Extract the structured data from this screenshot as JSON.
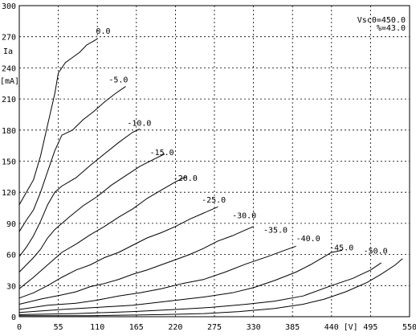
{
  "chart_data": {
    "type": "line",
    "xlim": [
      0,
      550
    ],
    "ylim": [
      0,
      300
    ],
    "x_ticks": [
      0,
      55,
      110,
      165,
      220,
      275,
      330,
      385,
      440,
      495,
      550
    ],
    "y_ticks": [
      0,
      30,
      60,
      90,
      120,
      150,
      180,
      210,
      240,
      270,
      300
    ],
    "x_unit_label": "[V]",
    "y_axis_label": "Ia",
    "y_unit_label": "[mA]",
    "annotations": [
      "Vsc0=450.0",
      "%=43.0"
    ],
    "grid": "dashed",
    "series": [
      {
        "name": "0.0",
        "points": [
          [
            0,
            108
          ],
          [
            10,
            120
          ],
          [
            20,
            132
          ],
          [
            30,
            155
          ],
          [
            40,
            185
          ],
          [
            50,
            215
          ],
          [
            55,
            235
          ],
          [
            65,
            245
          ],
          [
            75,
            250
          ],
          [
            85,
            255
          ],
          [
            95,
            262
          ],
          [
            105,
            266
          ],
          [
            110,
            268
          ]
        ]
      },
      {
        "name": "-5.0",
        "points": [
          [
            0,
            82
          ],
          [
            10,
            93
          ],
          [
            20,
            103
          ],
          [
            30,
            120
          ],
          [
            40,
            140
          ],
          [
            50,
            160
          ],
          [
            60,
            175
          ],
          [
            75,
            180
          ],
          [
            90,
            190
          ],
          [
            105,
            198
          ],
          [
            120,
            207
          ],
          [
            135,
            215
          ],
          [
            150,
            222
          ]
        ]
      },
      {
        "name": "-10.0",
        "points": [
          [
            0,
            58
          ],
          [
            10,
            67
          ],
          [
            20,
            78
          ],
          [
            30,
            92
          ],
          [
            40,
            108
          ],
          [
            50,
            120
          ],
          [
            60,
            126
          ],
          [
            80,
            134
          ],
          [
            100,
            146
          ],
          [
            120,
            157
          ],
          [
            140,
            168
          ],
          [
            160,
            178
          ],
          [
            170,
            181
          ]
        ]
      },
      {
        "name": "-15.0",
        "points": [
          [
            0,
            43
          ],
          [
            10,
            50
          ],
          [
            20,
            57
          ],
          [
            30,
            65
          ],
          [
            40,
            76
          ],
          [
            50,
            84
          ],
          [
            70,
            96
          ],
          [
            90,
            107
          ],
          [
            110,
            116
          ],
          [
            130,
            127
          ],
          [
            150,
            136
          ],
          [
            170,
            145
          ],
          [
            190,
            152
          ],
          [
            205,
            157
          ]
        ]
      },
      {
        "name": "-20.0",
        "points": [
          [
            0,
            27
          ],
          [
            20,
            38
          ],
          [
            40,
            50
          ],
          [
            60,
            62
          ],
          [
            80,
            70
          ],
          [
            100,
            79
          ],
          [
            120,
            87
          ],
          [
            140,
            96
          ],
          [
            160,
            104
          ],
          [
            180,
            114
          ],
          [
            200,
            122
          ],
          [
            220,
            130
          ],
          [
            235,
            135
          ]
        ]
      },
      {
        "name": "-25.0",
        "points": [
          [
            0,
            18
          ],
          [
            20,
            23
          ],
          [
            40,
            30
          ],
          [
            60,
            38
          ],
          [
            80,
            45
          ],
          [
            100,
            50
          ],
          [
            120,
            57
          ],
          [
            140,
            62
          ],
          [
            160,
            69
          ],
          [
            180,
            76
          ],
          [
            200,
            81
          ],
          [
            220,
            87
          ],
          [
            240,
            94
          ],
          [
            260,
            100
          ],
          [
            280,
            106
          ]
        ]
      },
      {
        "name": "-30.0",
        "points": [
          [
            0,
            12
          ],
          [
            30,
            17
          ],
          [
            60,
            21
          ],
          [
            80,
            24
          ],
          [
            100,
            29
          ],
          [
            120,
            32
          ],
          [
            140,
            36
          ],
          [
            160,
            41
          ],
          [
            180,
            45
          ],
          [
            200,
            50
          ],
          [
            220,
            55
          ],
          [
            240,
            60
          ],
          [
            260,
            66
          ],
          [
            280,
            73
          ],
          [
            300,
            78
          ],
          [
            320,
            84
          ],
          [
            330,
            87
          ]
        ]
      },
      {
        "name": "-35.0",
        "points": [
          [
            0,
            7
          ],
          [
            40,
            11
          ],
          [
            80,
            13
          ],
          [
            110,
            16
          ],
          [
            140,
            20
          ],
          [
            170,
            23
          ],
          [
            200,
            27
          ],
          [
            230,
            32
          ],
          [
            260,
            36
          ],
          [
            290,
            43
          ],
          [
            320,
            51
          ],
          [
            350,
            58
          ],
          [
            370,
            63
          ],
          [
            390,
            68
          ]
        ]
      },
      {
        "name": "-40.0",
        "points": [
          [
            0,
            4
          ],
          [
            60,
            7
          ],
          [
            110,
            9
          ],
          [
            160,
            11
          ],
          [
            210,
            15
          ],
          [
            260,
            19
          ],
          [
            300,
            23
          ],
          [
            330,
            28
          ],
          [
            360,
            35
          ],
          [
            390,
            43
          ],
          [
            410,
            50
          ],
          [
            430,
            58
          ],
          [
            440,
            62
          ],
          [
            455,
            64
          ]
        ]
      },
      {
        "name": "-45.0",
        "points": [
          [
            0,
            2
          ],
          [
            80,
            3
          ],
          [
            160,
            5
          ],
          [
            220,
            7
          ],
          [
            270,
            9
          ],
          [
            320,
            12
          ],
          [
            360,
            15
          ],
          [
            400,
            20
          ],
          [
            440,
            30
          ],
          [
            470,
            37
          ],
          [
            495,
            45
          ],
          [
            510,
            52
          ]
        ]
      },
      {
        "name": "-50.0",
        "points": [
          [
            0,
            1
          ],
          [
            100,
            1
          ],
          [
            200,
            2
          ],
          [
            260,
            3
          ],
          [
            310,
            5
          ],
          [
            360,
            8
          ],
          [
            400,
            12
          ],
          [
            430,
            17
          ],
          [
            460,
            24
          ],
          [
            490,
            33
          ],
          [
            510,
            41
          ],
          [
            530,
            50
          ],
          [
            540,
            56
          ]
        ]
      }
    ],
    "curve_labels": [
      {
        "text": "0.0",
        "x": 108,
        "y": 273
      },
      {
        "text": "-5.0",
        "x": 126,
        "y": 226
      },
      {
        "text": "-10.0",
        "x": 152,
        "y": 184
      },
      {
        "text": "-15.0",
        "x": 184,
        "y": 156
      },
      {
        "text": "-20.0",
        "x": 217,
        "y": 131
      },
      {
        "text": "-25.0",
        "x": 257,
        "y": 110
      },
      {
        "text": "-30.0",
        "x": 300,
        "y": 95
      },
      {
        "text": "-35.0",
        "x": 344,
        "y": 81
      },
      {
        "text": "-40.0",
        "x": 390,
        "y": 73
      },
      {
        "text": "-45.0",
        "x": 437,
        "y": 64
      },
      {
        "text": "-50.0",
        "x": 485,
        "y": 61
      }
    ]
  }
}
